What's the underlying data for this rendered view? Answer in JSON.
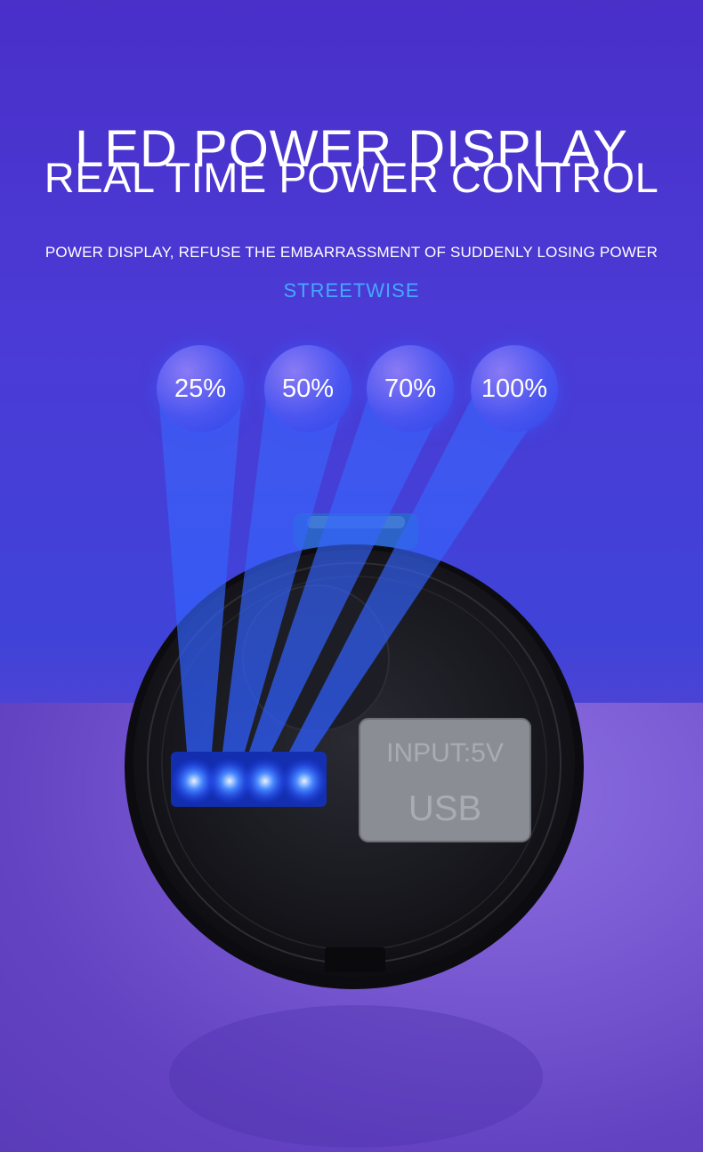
{
  "header": {
    "title": "LED POWER DISPLAY",
    "subtitle": "REAL TIME POWER CONTROL",
    "tagline": "POWER DISPLAY, REFUSE THE EMBARRASSMENT OF SUDDENLY LOSING POWER",
    "brand": "STREETWISE"
  },
  "levels": [
    {
      "label": "25%",
      "value": 25
    },
    {
      "label": "50%",
      "value": 50
    },
    {
      "label": "70%",
      "value": 70
    },
    {
      "label": "100%",
      "value": 100
    }
  ],
  "device": {
    "input_label": "INPUT:5V",
    "port_label": "USB",
    "led_count": 4
  },
  "colors": {
    "accent": "#45a8ff",
    "led": "#2f6bff",
    "device_body": "#1a1a22",
    "port_panel": "#8a8d93"
  }
}
